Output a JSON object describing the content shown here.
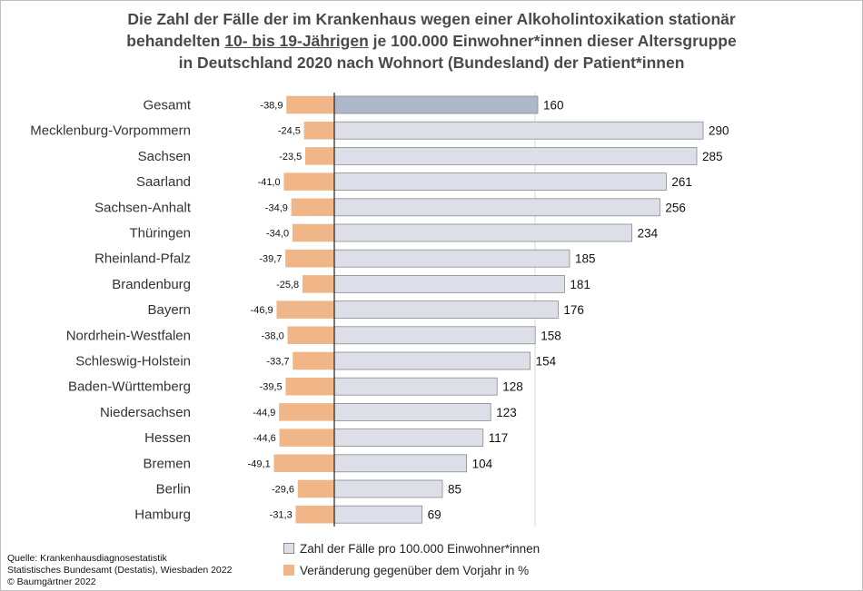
{
  "title": {
    "line1": "Die Zahl der Fälle der im Krankenhaus wegen einer Alkoholintoxikation stationär",
    "line2_pre": "behandelten ",
    "line2_underlined": "10- bis 19-Jährigen",
    "line2_post": " je 100.000 Einwohner*innen dieser Altersgruppe",
    "line3": "in Deutschland 2020 nach Wohnort (Bundesland) der Patient*innen"
  },
  "source": {
    "line1": "Quelle: Krankenhausdiagnosestatistik",
    "line2": "Statistisches Bundesamt (Destatis), Wiesbaden 2022",
    "line3": "© Baumgärtner 2022"
  },
  "legend": {
    "cases": "Zahl der Fälle pro 100.000 Einwohner*innen",
    "change": "Veränderung gegenüber dem Vorjahr in %"
  },
  "colors": {
    "cases_bar": "#dcdee8",
    "total_bar": "#adb9ca",
    "change_bar": "#f0b688",
    "bar_border": "#8a8a8a"
  },
  "chart_data": {
    "type": "bar",
    "orientation": "horizontal",
    "categories": [
      "Gesamt",
      "Mecklenburg-Vorpommern",
      "Sachsen",
      "Saarland",
      "Sachsen-Anhalt",
      "Thüringen",
      "Rheinland-Pfalz",
      "Brandenburg",
      "Bayern",
      "Nordrhein-Westfalen",
      "Schleswig-Holstein",
      "Baden-Württemberg",
      "Niedersachsen",
      "Hessen",
      "Bremen",
      "Berlin",
      "Hamburg"
    ],
    "series": [
      {
        "name": "Zahl der Fälle pro 100.000 Einwohner*innen",
        "values": [
          160,
          290,
          285,
          261,
          256,
          234,
          185,
          181,
          176,
          158,
          154,
          128,
          123,
          117,
          104,
          85,
          69
        ],
        "labels": [
          "160",
          "290",
          "285",
          "261",
          "256",
          "234",
          "185",
          "181",
          "176",
          "158",
          "154",
          "128",
          "123",
          "117",
          "104",
          "85",
          "69"
        ]
      },
      {
        "name": "Veränderung gegenüber dem Vorjahr in %",
        "values": [
          -38.9,
          -24.5,
          -23.5,
          -41.0,
          -34.9,
          -34.0,
          -39.7,
          -25.8,
          -46.9,
          -38.0,
          -33.7,
          -39.5,
          -44.9,
          -44.6,
          -49.1,
          -29.6,
          -31.3
        ],
        "labels": [
          "-38,9",
          "-24,5",
          "-23,5",
          "-41,0",
          "-34,9",
          "-34,0",
          "-39,7",
          "-25,8",
          "-46,9",
          "-38,0",
          "-33,7",
          "-39,5",
          "-44,9",
          "-44,6",
          "-49,1",
          "-29,6",
          "-31,3"
        ]
      }
    ],
    "highlight_category": "Gesamt",
    "grid": true
  }
}
